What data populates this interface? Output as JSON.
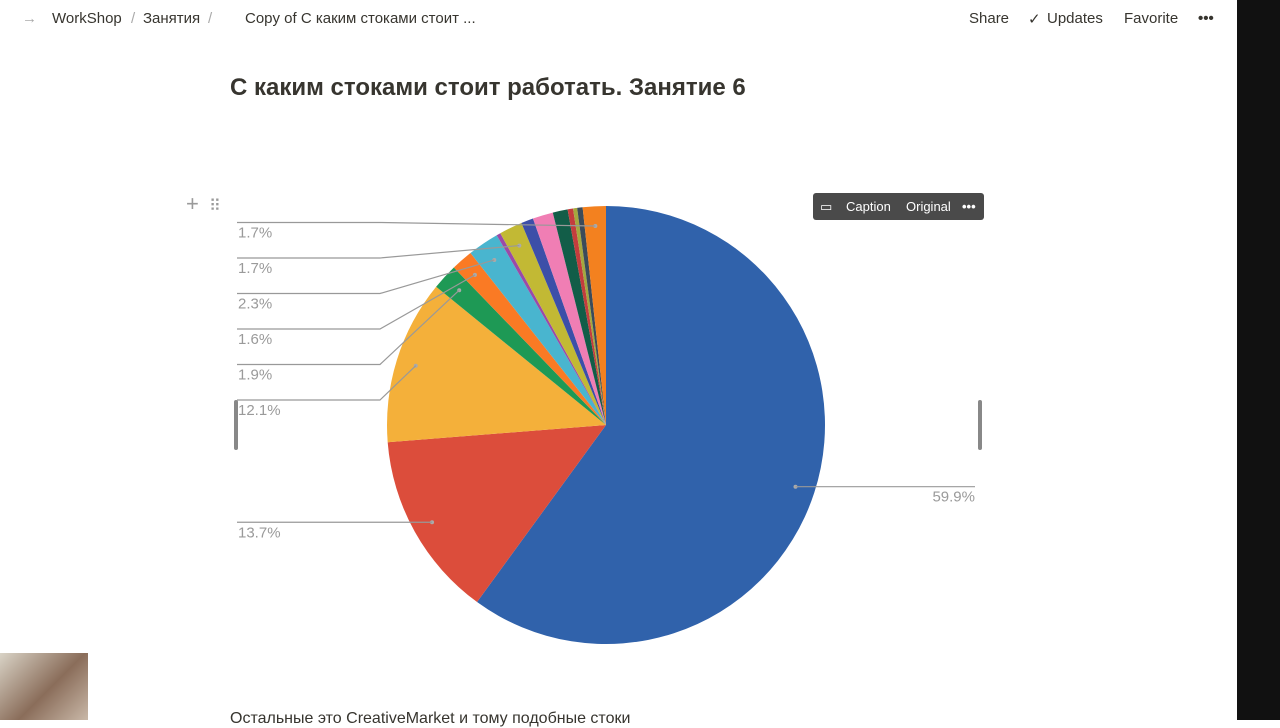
{
  "header": {
    "breadcrumbs": [
      "WorkShop",
      "Занятия",
      "Copy of С каким стоками стоит ..."
    ],
    "actions": [
      "Share",
      "Updates",
      "Favorite"
    ]
  },
  "page": {
    "title": "С каким стоками стоит работать. Занятие 6",
    "paragraph": "Остальные это CreativeMarket и тому подобные стоки"
  },
  "toolbar": {
    "buttons": [
      "Caption",
      "Original"
    ]
  },
  "chart_data": {
    "type": "pie",
    "values": [
      59.9,
      13.7,
      12.1,
      1.9,
      1.6,
      2.3,
      0.3,
      1.7,
      0.9,
      1.5,
      1.1,
      0.4,
      0.3,
      0.4,
      1.7
    ],
    "value_labels": [
      "59.9%",
      "13.7%",
      "12.1%",
      "1.9%",
      "1.6%",
      "2.3%",
      null,
      "1.7%",
      null,
      null,
      null,
      null,
      null,
      null,
      "1.7%"
    ],
    "colors": [
      "#3062ab",
      "#dc4d3b",
      "#f4b03a",
      "#1e9955",
      "#fa7a24",
      "#49b5cf",
      "#9a4aa8",
      "#c2b934",
      "#3c4fa8",
      "#f07eb4",
      "#125d48",
      "#c33d3d",
      "#a5a83e",
      "#3b4b5a",
      "#f3811f"
    ]
  }
}
